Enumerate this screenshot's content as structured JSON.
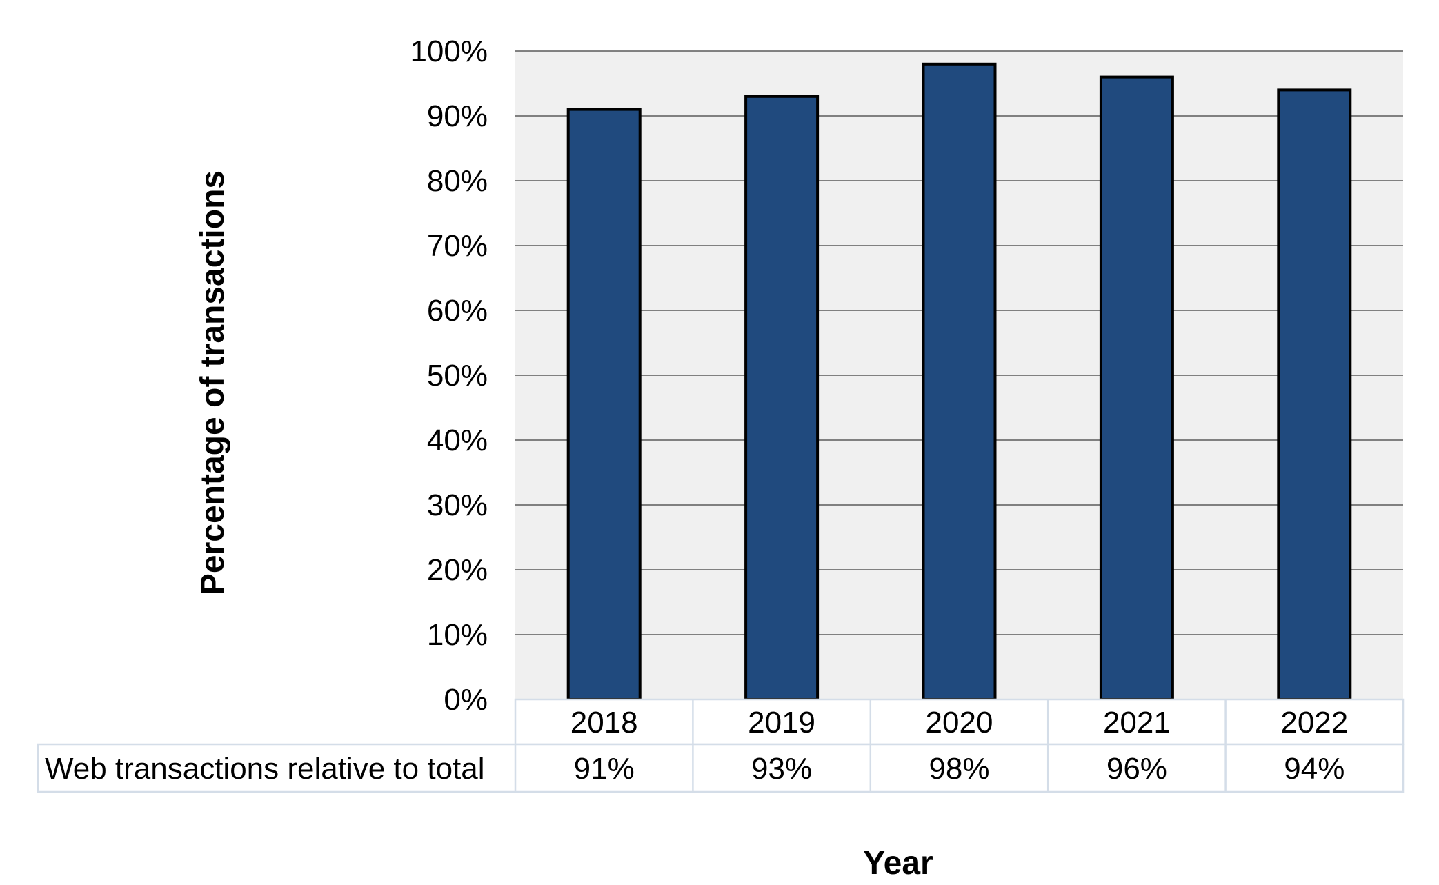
{
  "chart_data": {
    "type": "bar",
    "categories": [
      "2018",
      "2019",
      "2020",
      "2021",
      "2022"
    ],
    "series": [
      {
        "name": "Web transactions relative to total",
        "values": [
          91,
          93,
          98,
          96,
          94
        ],
        "value_labels": [
          "91%",
          "93%",
          "98%",
          "96%",
          "94%"
        ]
      }
    ],
    "xlabel": "Year",
    "ylabel": "Percentage of transactions",
    "ylim": [
      0,
      100
    ],
    "yticks": [
      "0%",
      "10%",
      "20%",
      "30%",
      "40%",
      "50%",
      "60%",
      "70%",
      "80%",
      "90%",
      "100%"
    ],
    "grid": true,
    "data_table": true,
    "colors": {
      "bar_fill": "#204a7e",
      "bar_stroke": "#000000",
      "plot_background": "#f0f0f0",
      "gridline": "#5a5a5a",
      "table_border": "#d4dde8"
    }
  }
}
